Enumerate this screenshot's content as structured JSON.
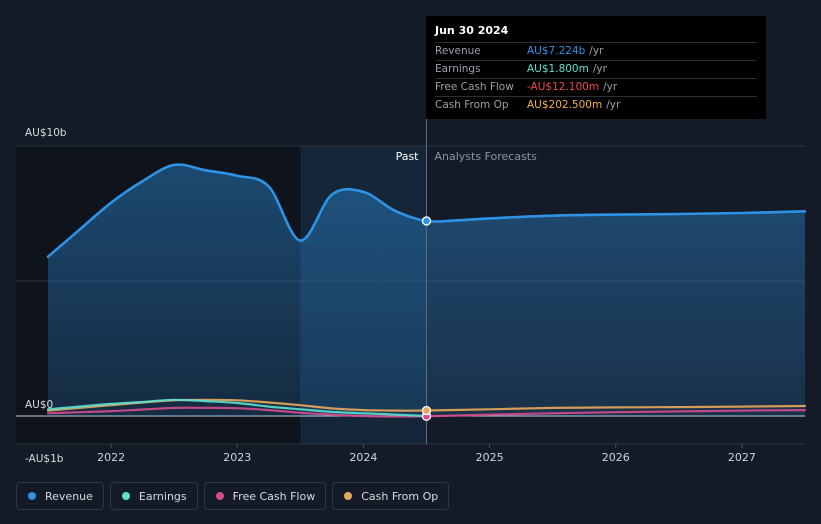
{
  "tooltip": {
    "date": "Jun 30 2024",
    "rows": [
      {
        "name": "Revenue",
        "value": "AU$7.224b",
        "unit": "/yr",
        "color": "#2e93e6"
      },
      {
        "name": "Earnings",
        "value": "AU$1.800m",
        "unit": "/yr",
        "color": "#5ce0cf"
      },
      {
        "name": "Free Cash Flow",
        "value": "-AU$12.100m",
        "unit": "/yr",
        "color": "#f0454f"
      },
      {
        "name": "Cash From Op",
        "value": "AU$202.500m",
        "unit": "/yr",
        "color": "#f2b04c"
      }
    ]
  },
  "regions": {
    "past": "Past",
    "forecast": "Analysts Forecasts"
  },
  "legend": [
    {
      "label": "Revenue",
      "color": "#2e93e6"
    },
    {
      "label": "Earnings",
      "color": "#5ce0cf"
    },
    {
      "label": "Free Cash Flow",
      "color": "#d44b8c"
    },
    {
      "label": "Cash From Op",
      "color": "#e8a85a"
    }
  ],
  "chart_data": {
    "type": "area",
    "x_unit": "year",
    "y_unit": "AU$b",
    "ylim": [
      -1,
      10
    ],
    "y_ticks": [
      {
        "value": 10,
        "label": "AU$10b"
      },
      {
        "value": 0,
        "label": "AU$0"
      },
      {
        "value": -1,
        "label": "-AU$1b"
      }
    ],
    "x_ticks": [
      {
        "value": 2022,
        "label": "2022"
      },
      {
        "value": 2023,
        "label": "2023"
      },
      {
        "value": 2024,
        "label": "2024"
      },
      {
        "value": 2025,
        "label": "2025"
      },
      {
        "value": 2026,
        "label": "2026"
      },
      {
        "value": 2027,
        "label": "2027"
      }
    ],
    "xlim": [
      2021.5,
      2027.5
    ],
    "past_end": 2024.5,
    "highlight_start": 2023.5,
    "series": [
      {
        "name": "Revenue",
        "color": "#2e93e6",
        "area": true,
        "points": [
          [
            2021.5,
            5.9
          ],
          [
            2021.75,
            6.9
          ],
          [
            2022.0,
            7.9
          ],
          [
            2022.25,
            8.7
          ],
          [
            2022.5,
            9.3
          ],
          [
            2022.75,
            9.1
          ],
          [
            2023.0,
            8.9
          ],
          [
            2023.25,
            8.5
          ],
          [
            2023.5,
            6.5
          ],
          [
            2023.75,
            8.2
          ],
          [
            2024.0,
            8.3
          ],
          [
            2024.25,
            7.6
          ],
          [
            2024.5,
            7.224
          ],
          [
            2024.75,
            7.25
          ],
          [
            2025.0,
            7.32
          ],
          [
            2025.5,
            7.42
          ],
          [
            2026.0,
            7.46
          ],
          [
            2026.5,
            7.48
          ],
          [
            2027.0,
            7.52
          ],
          [
            2027.5,
            7.58
          ]
        ]
      },
      {
        "name": "Earnings",
        "color": "#5ce0cf",
        "area": false,
        "points": [
          [
            2021.5,
            0.25
          ],
          [
            2021.75,
            0.35
          ],
          [
            2022.0,
            0.45
          ],
          [
            2022.25,
            0.52
          ],
          [
            2022.5,
            0.6
          ],
          [
            2022.75,
            0.55
          ],
          [
            2023.0,
            0.48
          ],
          [
            2023.25,
            0.35
          ],
          [
            2023.5,
            0.25
          ],
          [
            2023.75,
            0.15
          ],
          [
            2024.0,
            0.1
          ],
          [
            2024.25,
            0.05
          ],
          [
            2024.5,
            0.0018
          ]
        ]
      },
      {
        "name": "Free Cash Flow",
        "color": "#d44b8c",
        "area": false,
        "points": [
          [
            2021.5,
            0.1
          ],
          [
            2021.75,
            0.14
          ],
          [
            2022.0,
            0.18
          ],
          [
            2022.25,
            0.24
          ],
          [
            2022.5,
            0.3
          ],
          [
            2022.75,
            0.3
          ],
          [
            2023.0,
            0.29
          ],
          [
            2023.25,
            0.22
          ],
          [
            2023.5,
            0.12
          ],
          [
            2023.75,
            0.05
          ],
          [
            2024.0,
            0.0
          ],
          [
            2024.25,
            -0.02
          ],
          [
            2024.5,
            -0.0121
          ],
          [
            2025.0,
            0.05
          ],
          [
            2025.5,
            0.1
          ],
          [
            2026.0,
            0.14
          ],
          [
            2026.5,
            0.17
          ],
          [
            2027.0,
            0.2
          ],
          [
            2027.5,
            0.22
          ]
        ]
      },
      {
        "name": "Cash From Op",
        "color": "#e8a85a",
        "area": false,
        "points": [
          [
            2021.5,
            0.2
          ],
          [
            2021.75,
            0.3
          ],
          [
            2022.0,
            0.4
          ],
          [
            2022.25,
            0.5
          ],
          [
            2022.5,
            0.58
          ],
          [
            2022.75,
            0.6
          ],
          [
            2023.0,
            0.58
          ],
          [
            2023.25,
            0.5
          ],
          [
            2023.5,
            0.4
          ],
          [
            2023.75,
            0.28
          ],
          [
            2024.0,
            0.22
          ],
          [
            2024.25,
            0.2
          ],
          [
            2024.5,
            0.2025
          ],
          [
            2025.0,
            0.25
          ],
          [
            2025.5,
            0.3
          ],
          [
            2026.0,
            0.32
          ],
          [
            2026.5,
            0.33
          ],
          [
            2027.0,
            0.35
          ],
          [
            2027.5,
            0.37
          ]
        ]
      }
    ]
  }
}
